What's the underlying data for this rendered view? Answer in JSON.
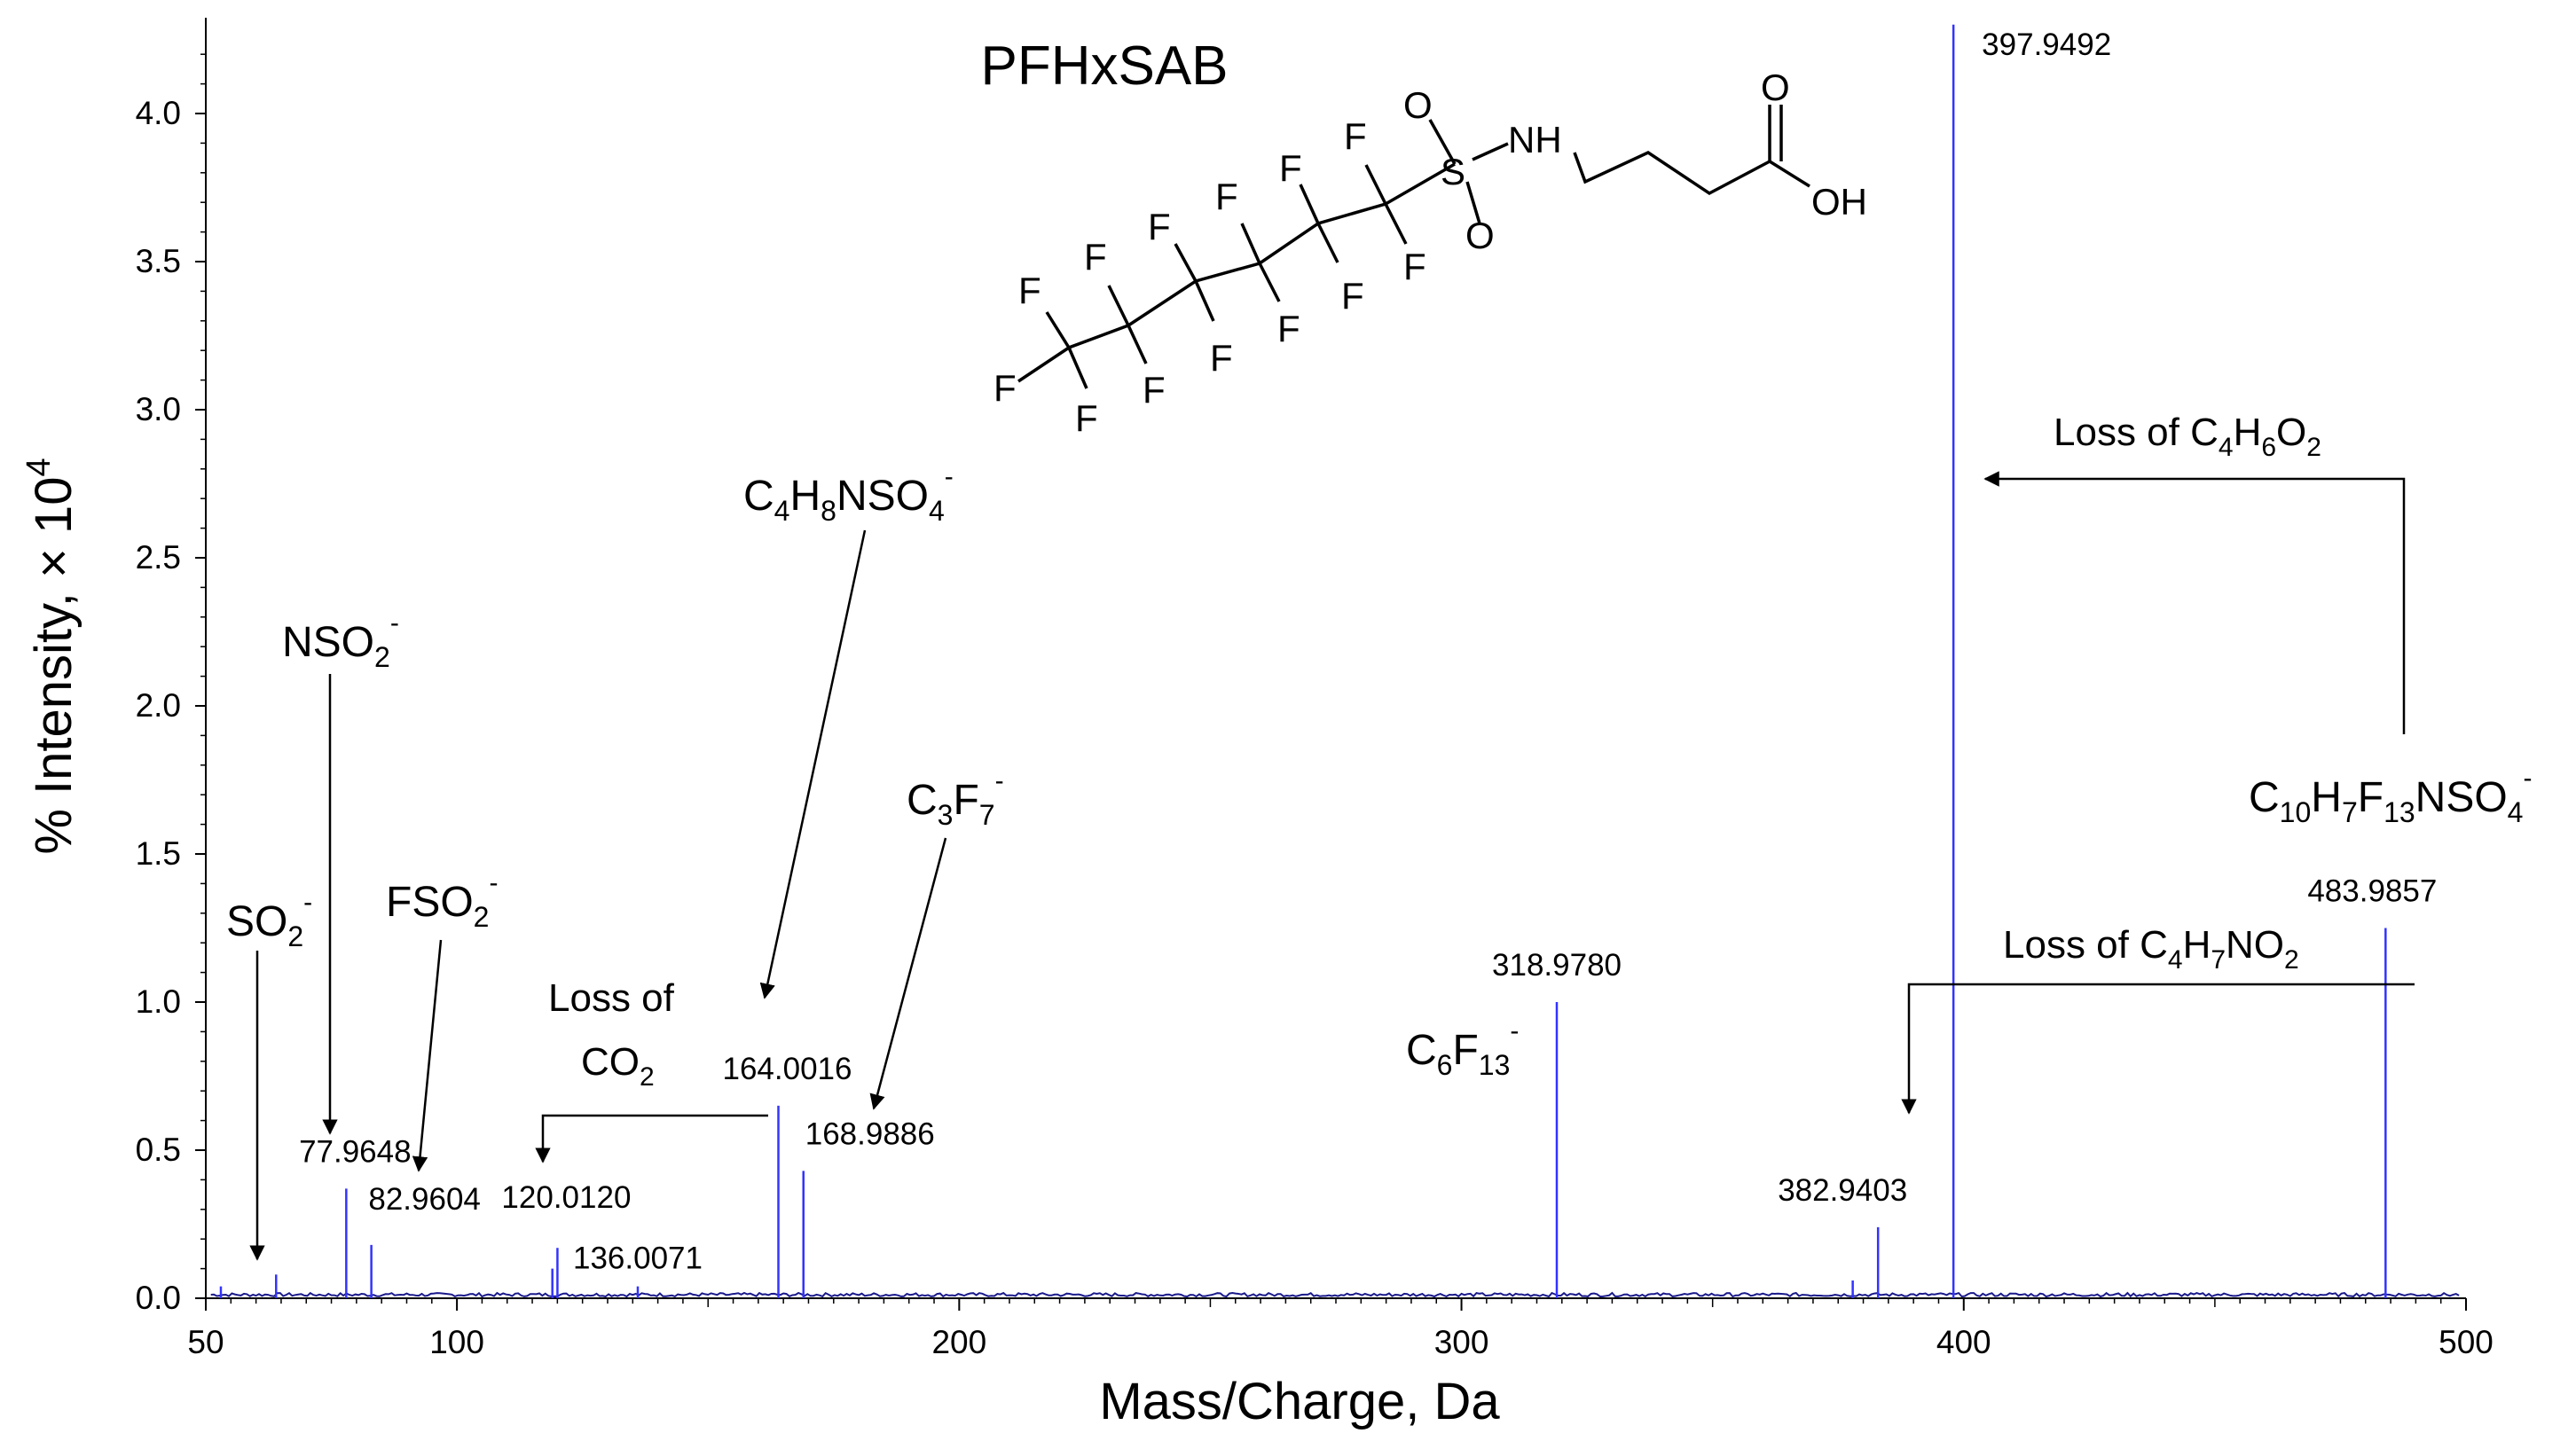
{
  "chart_data": {
    "type": "bar",
    "title": "PFHxSAB",
    "xlabel": "Mass/Charge, Da",
    "ylabel": "% Intensity, × 10",
    "ylabel_exponent": "4",
    "xlim": [
      50,
      500
    ],
    "ylim": [
      0,
      4.3
    ],
    "x_ticks": [
      50,
      100,
      200,
      300,
      400,
      500
    ],
    "y_ticks": [
      "0.0",
      "0.5",
      "1.0",
      "1.5",
      "2.0",
      "2.5",
      "3.0",
      "3.5",
      "4.0"
    ],
    "grid": false,
    "series_color": "#3333ff",
    "peaks": [
      {
        "mz": 53.0,
        "intensity": 0.04
      },
      {
        "mz": 64.0,
        "intensity": 0.08
      },
      {
        "mz": 77.9648,
        "intensity": 0.37,
        "label": "77.9648"
      },
      {
        "mz": 82.9604,
        "intensity": 0.18,
        "label": "82.9604"
      },
      {
        "mz": 119.0,
        "intensity": 0.1
      },
      {
        "mz": 120.012,
        "intensity": 0.17,
        "label": "120.0120"
      },
      {
        "mz": 136.0071,
        "intensity": 0.04,
        "label": "136.0071"
      },
      {
        "mz": 164.0016,
        "intensity": 0.65,
        "label": "164.0016"
      },
      {
        "mz": 168.9886,
        "intensity": 0.43,
        "label": "168.9886"
      },
      {
        "mz": 318.978,
        "intensity": 1.0,
        "label": "318.9780"
      },
      {
        "mz": 377.9,
        "intensity": 0.06
      },
      {
        "mz": 382.9403,
        "intensity": 0.24,
        "label": "382.9403"
      },
      {
        "mz": 397.9492,
        "intensity": 4.3,
        "label": "397.9492"
      },
      {
        "mz": 483.9857,
        "intensity": 1.25,
        "label": "483.9857"
      }
    ]
  },
  "annotations": {
    "so2": {
      "main": "SO",
      "sub": "2",
      "sup": "-"
    },
    "nso2": {
      "main": "NSO",
      "sub": "2",
      "sup": "-"
    },
    "fso2": {
      "main": "FSO",
      "sub": "2",
      "sup": "-"
    },
    "loss_co2_line1": "Loss of",
    "loss_co2_line2": {
      "main": "CO",
      "sub": "2"
    },
    "c4h8nso4": {
      "p1": "C",
      "s1": "4",
      "p2": "H",
      "s2": "8",
      "p3": "NSO",
      "s3": "4",
      "sup": "-"
    },
    "c3f7": {
      "p1": "C",
      "s1": "3",
      "p2": "F",
      "s2": "7",
      "sup": "-"
    },
    "c6f13": {
      "p1": "C",
      "s1": "6",
      "p2": "F",
      "s2": "13",
      "sup": "-"
    },
    "loss_c4h6o2": {
      "p0": "Loss of C",
      "s1": "4",
      "p2": "H",
      "s2": "6",
      "p3": "O",
      "s3": "2"
    },
    "loss_c4h7no2": {
      "p0": "Loss of C",
      "s1": "4",
      "p2": "H",
      "s2": "7",
      "p3": "NO",
      "s3": "2"
    },
    "precursor": {
      "p1": "C",
      "s1": "10",
      "p2": "H",
      "s2": "7",
      "p3": "F",
      "s3": "13",
      "p4": "NSO",
      "s4": "4",
      "sup": "-"
    }
  },
  "structure": {
    "fluorine": "F",
    "sulfur": "S",
    "oxygen": "O",
    "amine": "NH",
    "hydroxyl": "OH"
  }
}
